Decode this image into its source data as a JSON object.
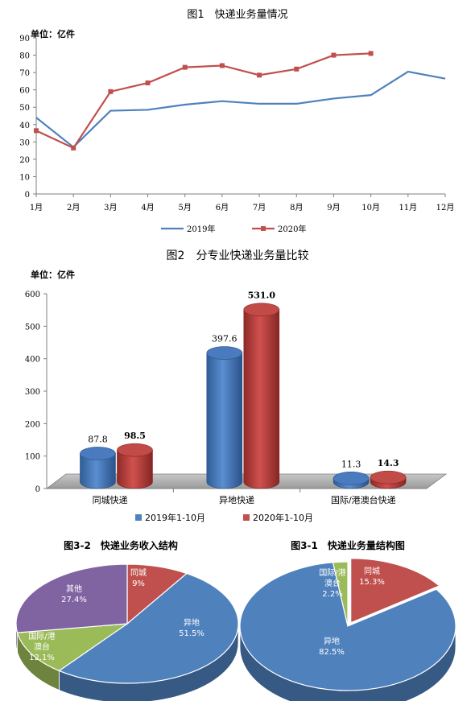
{
  "chart_data": [
    {
      "type": "line",
      "title": "图1　快递业务量情况",
      "ylabel": "单位：亿件",
      "categories": [
        "1月",
        "2月",
        "3月",
        "4月",
        "5月",
        "6月",
        "7月",
        "8月",
        "9月",
        "10月",
        "11月",
        "12月"
      ],
      "ylim": [
        0,
        90
      ],
      "yticks": [
        0,
        10,
        20,
        30,
        40,
        50,
        60,
        70,
        80,
        90
      ],
      "series": [
        {
          "name": "2019年",
          "color": "#4F81BD",
          "values": [
            44,
            27,
            48,
            48.5,
            51.5,
            53.5,
            52,
            52,
            55,
            57,
            70.5,
            66.5
          ]
        },
        {
          "name": "2020年",
          "color": "#C0504D",
          "values": [
            36.5,
            26.5,
            59,
            64,
            73,
            74,
            68.5,
            72,
            80,
            81,
            null,
            null
          ]
        }
      ]
    },
    {
      "type": "bar",
      "title": "图2　分专业快递业务量比较",
      "ylabel": "单位：亿件",
      "categories": [
        "同城快递",
        "异地快递",
        "国际/港澳台快递"
      ],
      "ylim": [
        0,
        600
      ],
      "yticks": [
        0,
        100,
        200,
        300,
        400,
        500,
        600
      ],
      "series": [
        {
          "name": "2019年1-10月",
          "color": "#4F81BD",
          "values": [
            87.8,
            397.6,
            11.3
          ],
          "labels": [
            "87.8",
            "397.6",
            "11.3"
          ]
        },
        {
          "name": "2020年1-10月",
          "color": "#C0504D",
          "values": [
            98.5,
            531.0,
            14.3
          ],
          "labels": [
            "98.5",
            "531.0",
            "14.3"
          ]
        }
      ]
    },
    {
      "type": "pie",
      "title": "图3-2　快递业务收入结构",
      "slices": [
        {
          "label": "同城",
          "value": 9,
          "text": "9%",
          "color": "#C0504D"
        },
        {
          "label": "异地",
          "value": 51.5,
          "text": "51.5%",
          "color": "#4F81BD"
        },
        {
          "label": "国际/港澳台",
          "value": 12.1,
          "text": "12.1%",
          "color": "#9BBB59"
        },
        {
          "label": "其他",
          "value": 27.4,
          "text": "27.4%",
          "color": "#8064A2"
        }
      ]
    },
    {
      "type": "pie",
      "title": "图3-1　快递业务量结构图",
      "slices": [
        {
          "label": "同城",
          "value": 15.3,
          "text": "15.3%",
          "color": "#C0504D"
        },
        {
          "label": "异地",
          "value": 82.5,
          "text": "82.5%",
          "color": "#4F81BD"
        },
        {
          "label": "国际/港澳台",
          "value": 2.2,
          "text": "2.2%",
          "color": "#9BBB59"
        }
      ]
    }
  ]
}
